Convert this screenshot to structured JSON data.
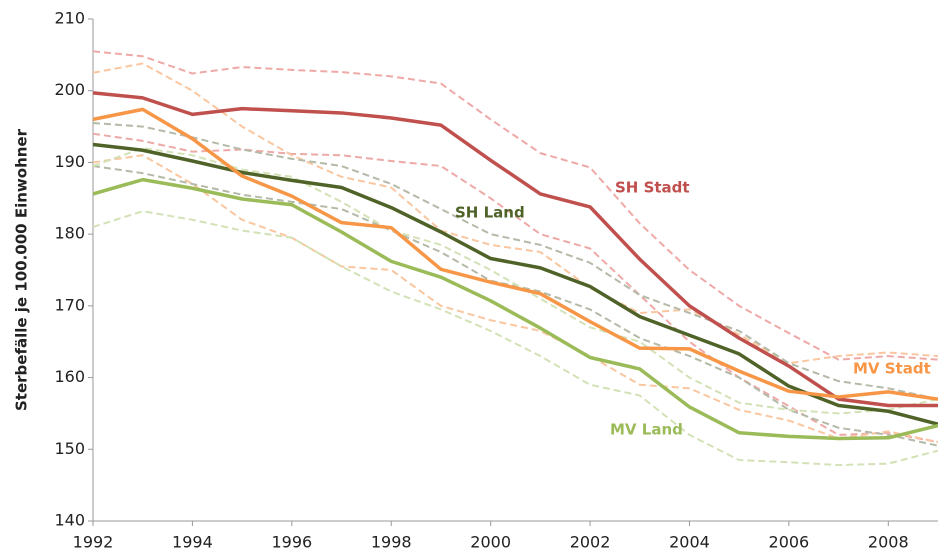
{
  "chart_data": {
    "type": "line",
    "y_label": "Sterbefälle je 100.000 Einwohner",
    "x": [
      1992,
      1993,
      1994,
      1995,
      1996,
      1997,
      1998,
      1999,
      2000,
      2001,
      2002,
      2003,
      2004,
      2005,
      2006,
      2007,
      2008,
      2009
    ],
    "xlim": [
      1992,
      2009
    ],
    "xticks": [
      1992,
      1994,
      1996,
      1998,
      2000,
      2002,
      2004,
      2006,
      2008
    ],
    "ylim": [
      140,
      210
    ],
    "yticks": [
      140,
      150,
      160,
      170,
      180,
      190,
      200,
      210
    ],
    "grid": false,
    "series": [
      {
        "color": "#eea9a7",
        "dashed": true,
        "values": [
          205.5,
          204.8,
          202.4,
          203.3,
          202.9,
          202.6,
          202.0,
          201.0,
          196.0,
          191.3,
          189.3,
          181.5,
          175.0,
          170.0,
          166.2,
          162.5,
          163.0,
          162.5
        ]
      },
      {
        "color": "#eea9a7",
        "dashed": true,
        "values": [
          194.0,
          193.0,
          191.5,
          191.8,
          191.2,
          191.0,
          190.2,
          189.5,
          185.0,
          180.0,
          178.0,
          171.5,
          165.0,
          160.0,
          156.0,
          152.0,
          152.3,
          151.0
        ]
      },
      {
        "color": "#f9c6a0",
        "dashed": true,
        "values": [
          202.5,
          203.8,
          200.0,
          195.0,
          191.0,
          188.0,
          186.5,
          180.5,
          178.5,
          177.5,
          172.5,
          169.0,
          169.5,
          166.0,
          162.0,
          163.0,
          163.5,
          163.0
        ]
      },
      {
        "color": "#f9c6a0",
        "dashed": true,
        "values": [
          190.0,
          191.0,
          187.0,
          182.0,
          179.5,
          175.5,
          175.0,
          170.0,
          168.0,
          166.5,
          163.0,
          159.0,
          158.5,
          155.5,
          154.0,
          151.5,
          152.5,
          151.0
        ]
      },
      {
        "color": "#b3baa8",
        "dashed": true,
        "values": [
          195.5,
          195.0,
          193.5,
          191.8,
          190.5,
          189.5,
          187.0,
          183.5,
          180.0,
          178.5,
          176.0,
          171.5,
          169.0,
          166.5,
          162.0,
          159.5,
          158.5,
          157.0
        ]
      },
      {
        "color": "#b3baa8",
        "dashed": true,
        "values": [
          189.5,
          188.5,
          187.0,
          185.5,
          184.5,
          183.5,
          180.5,
          177.5,
          173.5,
          172.0,
          169.5,
          165.5,
          163.0,
          160.0,
          155.5,
          153.0,
          152.0,
          150.5
        ]
      },
      {
        "color": "#d3e2b6",
        "dashed": true,
        "values": [
          189.5,
          192.0,
          191.0,
          189.0,
          188.0,
          184.5,
          180.5,
          178.5,
          175.0,
          171.0,
          167.0,
          165.0,
          160.0,
          156.5,
          155.5,
          155.0,
          155.5,
          157.0
        ]
      },
      {
        "color": "#d3e2b6",
        "dashed": true,
        "values": [
          181.0,
          183.2,
          182.0,
          180.5,
          179.5,
          175.5,
          172.0,
          169.5,
          166.5,
          163.0,
          159.0,
          157.5,
          152.0,
          148.5,
          148.2,
          147.8,
          148.0,
          149.8
        ]
      },
      {
        "name": "SH Stadt",
        "color": "#c0504d",
        "values": [
          199.7,
          199.0,
          196.7,
          197.5,
          197.2,
          196.9,
          196.2,
          195.2,
          190.3,
          185.6,
          183.8,
          176.5,
          170.0,
          165.5,
          161.6,
          157.0,
          156.1,
          156.1
        ]
      },
      {
        "name": "SH Land",
        "color": "#4f6228",
        "values": [
          192.5,
          191.7,
          190.2,
          188.6,
          187.5,
          186.5,
          183.7,
          180.3,
          176.6,
          175.3,
          172.7,
          168.5,
          165.9,
          163.3,
          158.8,
          156.1,
          155.3,
          153.5
        ]
      },
      {
        "name": "MV Stadt",
        "color": "#f79646",
        "values": [
          196.0,
          197.4,
          193.3,
          188.1,
          185.3,
          181.6,
          180.9,
          175.1,
          173.3,
          171.7,
          167.8,
          164.1,
          164.0,
          160.9,
          158.1,
          157.3,
          158.0,
          157.0
        ]
      },
      {
        "name": "MV Land",
        "color": "#9bbb59",
        "values": [
          185.6,
          187.6,
          186.4,
          184.9,
          184.1,
          180.3,
          176.2,
          174.0,
          170.7,
          166.9,
          162.8,
          161.2,
          155.9,
          152.3,
          151.8,
          151.5,
          151.6,
          153.3
        ]
      }
    ]
  }
}
